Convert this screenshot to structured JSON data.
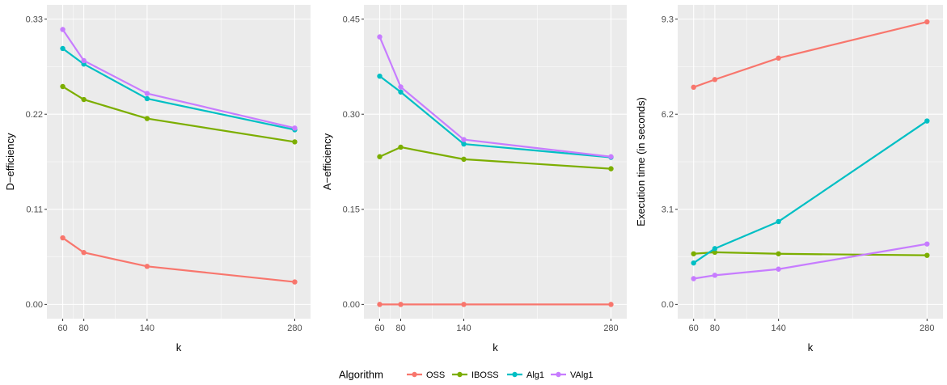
{
  "legend": {
    "title": "Algorithm",
    "position": "bottom",
    "entries": [
      {
        "name": "OSS",
        "color": "#F8766D"
      },
      {
        "name": "IBOSS",
        "color": "#7CAE00"
      },
      {
        "name": "Alg1",
        "color": "#00BFC4"
      },
      {
        "name": "VAlg1",
        "color": "#C77CFF"
      }
    ]
  },
  "chart_data": [
    {
      "type": "line",
      "xlabel": "k",
      "ylabel": "D−efficiency",
      "x": [
        60,
        80,
        140,
        280
      ],
      "xticks": [
        "60",
        "80",
        "140",
        "280"
      ],
      "xlim": [
        45,
        295
      ],
      "yticks": [
        0,
        0.11,
        0.22,
        0.33
      ],
      "ytick_labels": [
        "0.00",
        "0.11",
        "0.22",
        "0.33"
      ],
      "ylim": [
        -0.0165,
        0.3465
      ],
      "grid": true,
      "series": [
        {
          "name": "OSS",
          "color": "#F8766D",
          "values": [
            0.077,
            0.06,
            0.044,
            0.026
          ]
        },
        {
          "name": "IBOSS",
          "color": "#7CAE00",
          "values": [
            0.252,
            0.237,
            0.215,
            0.188
          ]
        },
        {
          "name": "Alg1",
          "color": "#00BFC4",
          "values": [
            0.296,
            0.278,
            0.238,
            0.202
          ]
        },
        {
          "name": "VAlg1",
          "color": "#C77CFF",
          "values": [
            0.318,
            0.282,
            0.244,
            0.204
          ]
        }
      ]
    },
    {
      "type": "line",
      "xlabel": "k",
      "ylabel": "A−efficiency",
      "x": [
        60,
        80,
        140,
        280
      ],
      "xticks": [
        "60",
        "80",
        "140",
        "280"
      ],
      "xlim": [
        45,
        295
      ],
      "yticks": [
        0,
        0.15,
        0.3,
        0.45
      ],
      "ytick_labels": [
        "0.00",
        "0.15",
        "0.30",
        "0.45"
      ],
      "ylim": [
        -0.0225,
        0.4725
      ],
      "grid": true,
      "series": [
        {
          "name": "OSS",
          "color": "#F8766D",
          "values": [
            0.0,
            0.0,
            0.0,
            0.0
          ]
        },
        {
          "name": "IBOSS",
          "color": "#7CAE00",
          "values": [
            0.233,
            0.248,
            0.229,
            0.214
          ]
        },
        {
          "name": "Alg1",
          "color": "#00BFC4",
          "values": [
            0.36,
            0.335,
            0.253,
            0.232
          ]
        },
        {
          "name": "VAlg1",
          "color": "#C77CFF",
          "values": [
            0.422,
            0.343,
            0.26,
            0.233
          ]
        }
      ]
    },
    {
      "type": "line",
      "xlabel": "k",
      "ylabel": "Execution time (in seconds)",
      "x": [
        60,
        80,
        140,
        280
      ],
      "xticks": [
        "60",
        "80",
        "140",
        "280"
      ],
      "xlim": [
        45,
        295
      ],
      "yticks": [
        0,
        3.1,
        6.2,
        9.3
      ],
      "ytick_labels": [
        "0.0",
        "3.1",
        "6.2",
        "9.3"
      ],
      "ylim": [
        -0.465,
        9.765
      ],
      "grid": true,
      "series": [
        {
          "name": "OSS",
          "color": "#F8766D",
          "values": [
            7.08,
            7.33,
            8.03,
            9.21
          ]
        },
        {
          "name": "IBOSS",
          "color": "#7CAE00",
          "values": [
            1.65,
            1.7,
            1.65,
            1.6
          ]
        },
        {
          "name": "Alg1",
          "color": "#00BFC4",
          "values": [
            1.35,
            1.82,
            2.7,
            5.98
          ]
        },
        {
          "name": "VAlg1",
          "color": "#C77CFF",
          "values": [
            0.84,
            0.95,
            1.15,
            1.97
          ]
        }
      ]
    }
  ]
}
